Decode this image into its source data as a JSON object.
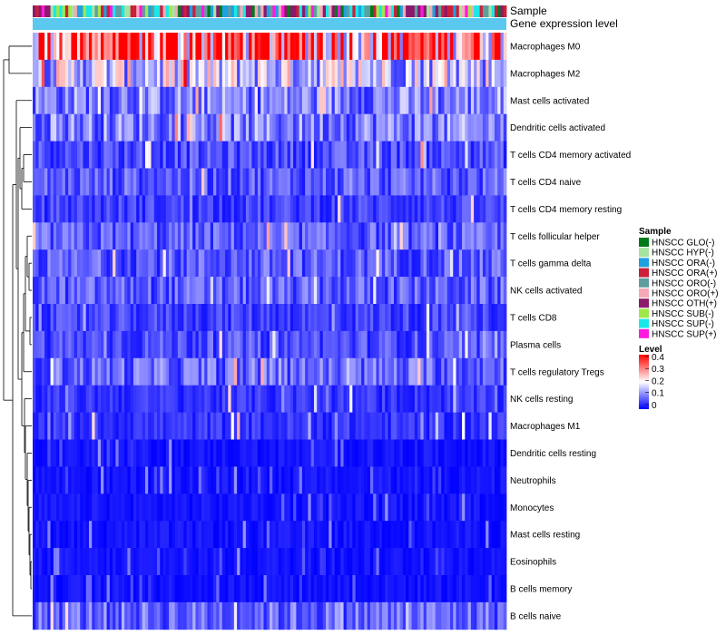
{
  "chart_data": {
    "type": "heatmap",
    "n_columns": 160,
    "annotation_tracks": [
      "Sample",
      "Gene expression level"
    ],
    "rows": [
      "Macrophages M0",
      "Macrophages M2",
      "Mast cells activated",
      "Dendritic cells activated",
      "T cells CD4 memory activated",
      "T cells CD4 naive",
      "T cells CD4 memory resting",
      "T cells follicular helper",
      "T cells gamma delta",
      "NK cells activated",
      "T cells CD8",
      "Plasma cells",
      "T cells regulatory  Tregs",
      "NK cells resting",
      "Macrophages M1",
      "Dendritic cells resting",
      "Neutrophils",
      "Monocytes",
      "Mast cells resting",
      "Eosinophils",
      "B cells memory",
      "B cells naive"
    ],
    "row_mean_levels": [
      0.33,
      0.16,
      0.1,
      0.1,
      0.06,
      0.07,
      0.05,
      0.07,
      0.07,
      0.07,
      0.05,
      0.06,
      0.08,
      0.04,
      0.04,
      0.01,
      0.01,
      0.015,
      0.02,
      0.01,
      0.01,
      0.08
    ],
    "legend_sample": {
      "title": "Sample",
      "items": [
        {
          "label": "HNSCC GLO(-)",
          "color": "#007a1a"
        },
        {
          "label": "HNSCC HYP(-)",
          "color": "#a6e3a0"
        },
        {
          "label": "HNSCC ORA(-)",
          "color": "#1fa0e0"
        },
        {
          "label": "HNSCC ORA(+)",
          "color": "#cc1f3a"
        },
        {
          "label": "HNSCC ORO(-)",
          "color": "#5e9e9e"
        },
        {
          "label": "HNSCC ORO(+)",
          "color": "#f4a8b8"
        },
        {
          "label": "HNSCC OTH(+)",
          "color": "#8b1a6b"
        },
        {
          "label": "HNSCC SUB(-)",
          "color": "#a0e84a"
        },
        {
          "label": "HNSCC SUP(-)",
          "color": "#19e8e8"
        },
        {
          "label": "HNSCC SUP(+)",
          "color": "#ff19e0"
        }
      ]
    },
    "legend_level": {
      "title": "Level",
      "ticks": [
        "0.4",
        "0.3",
        "0.2",
        "0.1",
        "0"
      ],
      "range": [
        0,
        0.4
      ],
      "colors": {
        "low": "#0000ff",
        "mid": "#ffffff",
        "high": "#ff0000"
      }
    },
    "expression_track_color": "#5bc8ef"
  }
}
